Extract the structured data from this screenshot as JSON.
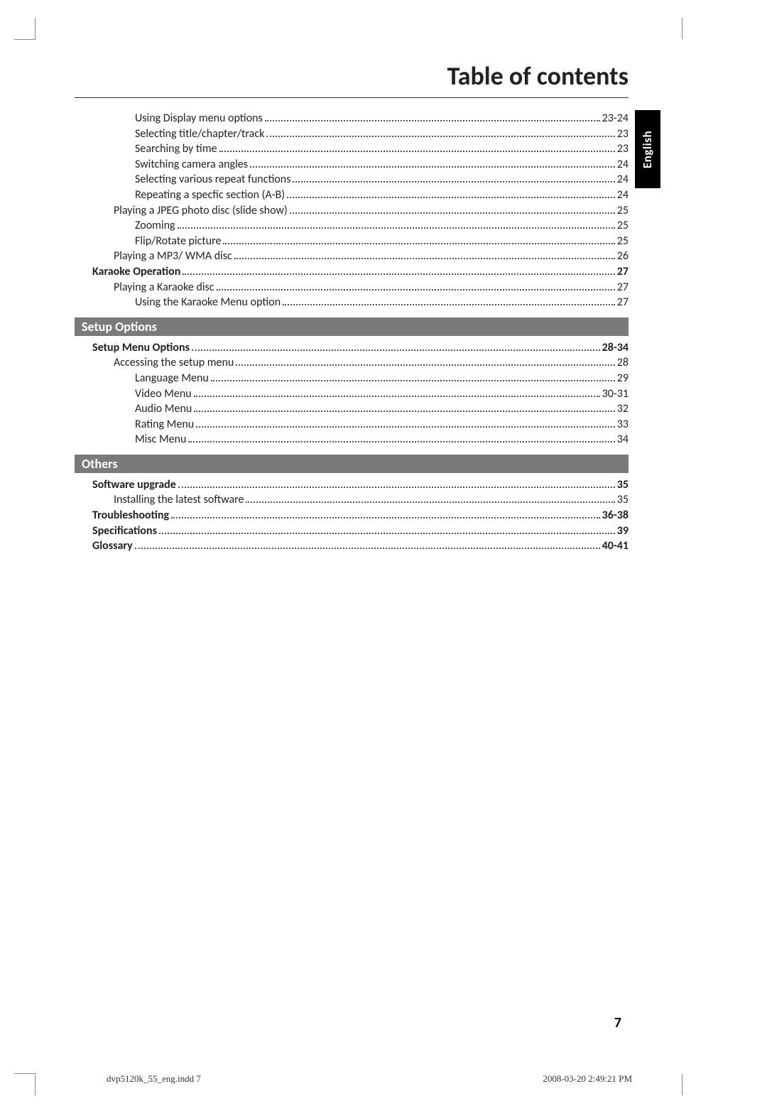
{
  "title": "Table of contents",
  "side_tab": "English",
  "page_number": "7",
  "footer": {
    "left": "dvp5120k_55_eng.indd   7",
    "right": "2008-03-20   2:49:21 PM"
  },
  "sections": [
    {
      "header": null,
      "entries": [
        {
          "indent": 2,
          "bold": false,
          "label": "Using Display menu options",
          "page": "23-24"
        },
        {
          "indent": 2,
          "bold": false,
          "label": "Selecting title/chapter/track",
          "page": "23"
        },
        {
          "indent": 2,
          "bold": false,
          "label": "Searching by time",
          "page": "23"
        },
        {
          "indent": 2,
          "bold": false,
          "label": "Switching camera angles",
          "page": "24"
        },
        {
          "indent": 2,
          "bold": false,
          "label": "Selecting various repeat functions",
          "page": "24"
        },
        {
          "indent": 2,
          "bold": false,
          "label": "Repeating a specfic section (A-B)",
          "page": "24"
        },
        {
          "indent": 1,
          "bold": false,
          "label": "Playing a JPEG photo disc (slide show)",
          "page": "25"
        },
        {
          "indent": 2,
          "bold": false,
          "label": "Zooming",
          "page": "25"
        },
        {
          "indent": 2,
          "bold": false,
          "label": "Flip/Rotate picture",
          "page": "25"
        },
        {
          "indent": 1,
          "bold": false,
          "label": "Playing a MP3/ WMA disc",
          "page": "26"
        },
        {
          "indent": 0,
          "bold": true,
          "label": "Karaoke Operation",
          "page": "27"
        },
        {
          "indent": 1,
          "bold": false,
          "label": "Playing a Karaoke disc",
          "page": "27"
        },
        {
          "indent": 2,
          "bold": false,
          "label": "Using the Karaoke Menu option",
          "page": "27"
        }
      ]
    },
    {
      "header": "Setup Options",
      "entries": [
        {
          "indent": 0,
          "bold": true,
          "label": "Setup Menu Options",
          "page": "28-34"
        },
        {
          "indent": 1,
          "bold": false,
          "label": "Accessing the setup menu",
          "page": "28"
        },
        {
          "indent": 2,
          "bold": false,
          "label": "Language Menu",
          "page": "29"
        },
        {
          "indent": 2,
          "bold": false,
          "label": "Video Menu",
          "page": "30-31"
        },
        {
          "indent": 2,
          "bold": false,
          "label": "Audio Menu",
          "page": "32"
        },
        {
          "indent": 2,
          "bold": false,
          "label": "Rating Menu",
          "page": "33"
        },
        {
          "indent": 2,
          "bold": false,
          "label": "Misc Menu",
          "page": "34"
        }
      ]
    },
    {
      "header": "Others",
      "entries": [
        {
          "indent": 0,
          "bold": true,
          "label": "Software upgrade",
          "page": "35"
        },
        {
          "indent": 1,
          "bold": false,
          "label": "Installing the latest software",
          "page": "35"
        },
        {
          "indent": 0,
          "bold": true,
          "label": "Troubleshooting",
          "page": "36-38"
        },
        {
          "indent": 0,
          "bold": true,
          "label": "Specifications",
          "page": "39"
        },
        {
          "indent": 0,
          "bold": true,
          "label": "Glossary",
          "page": "40-41"
        }
      ]
    }
  ]
}
